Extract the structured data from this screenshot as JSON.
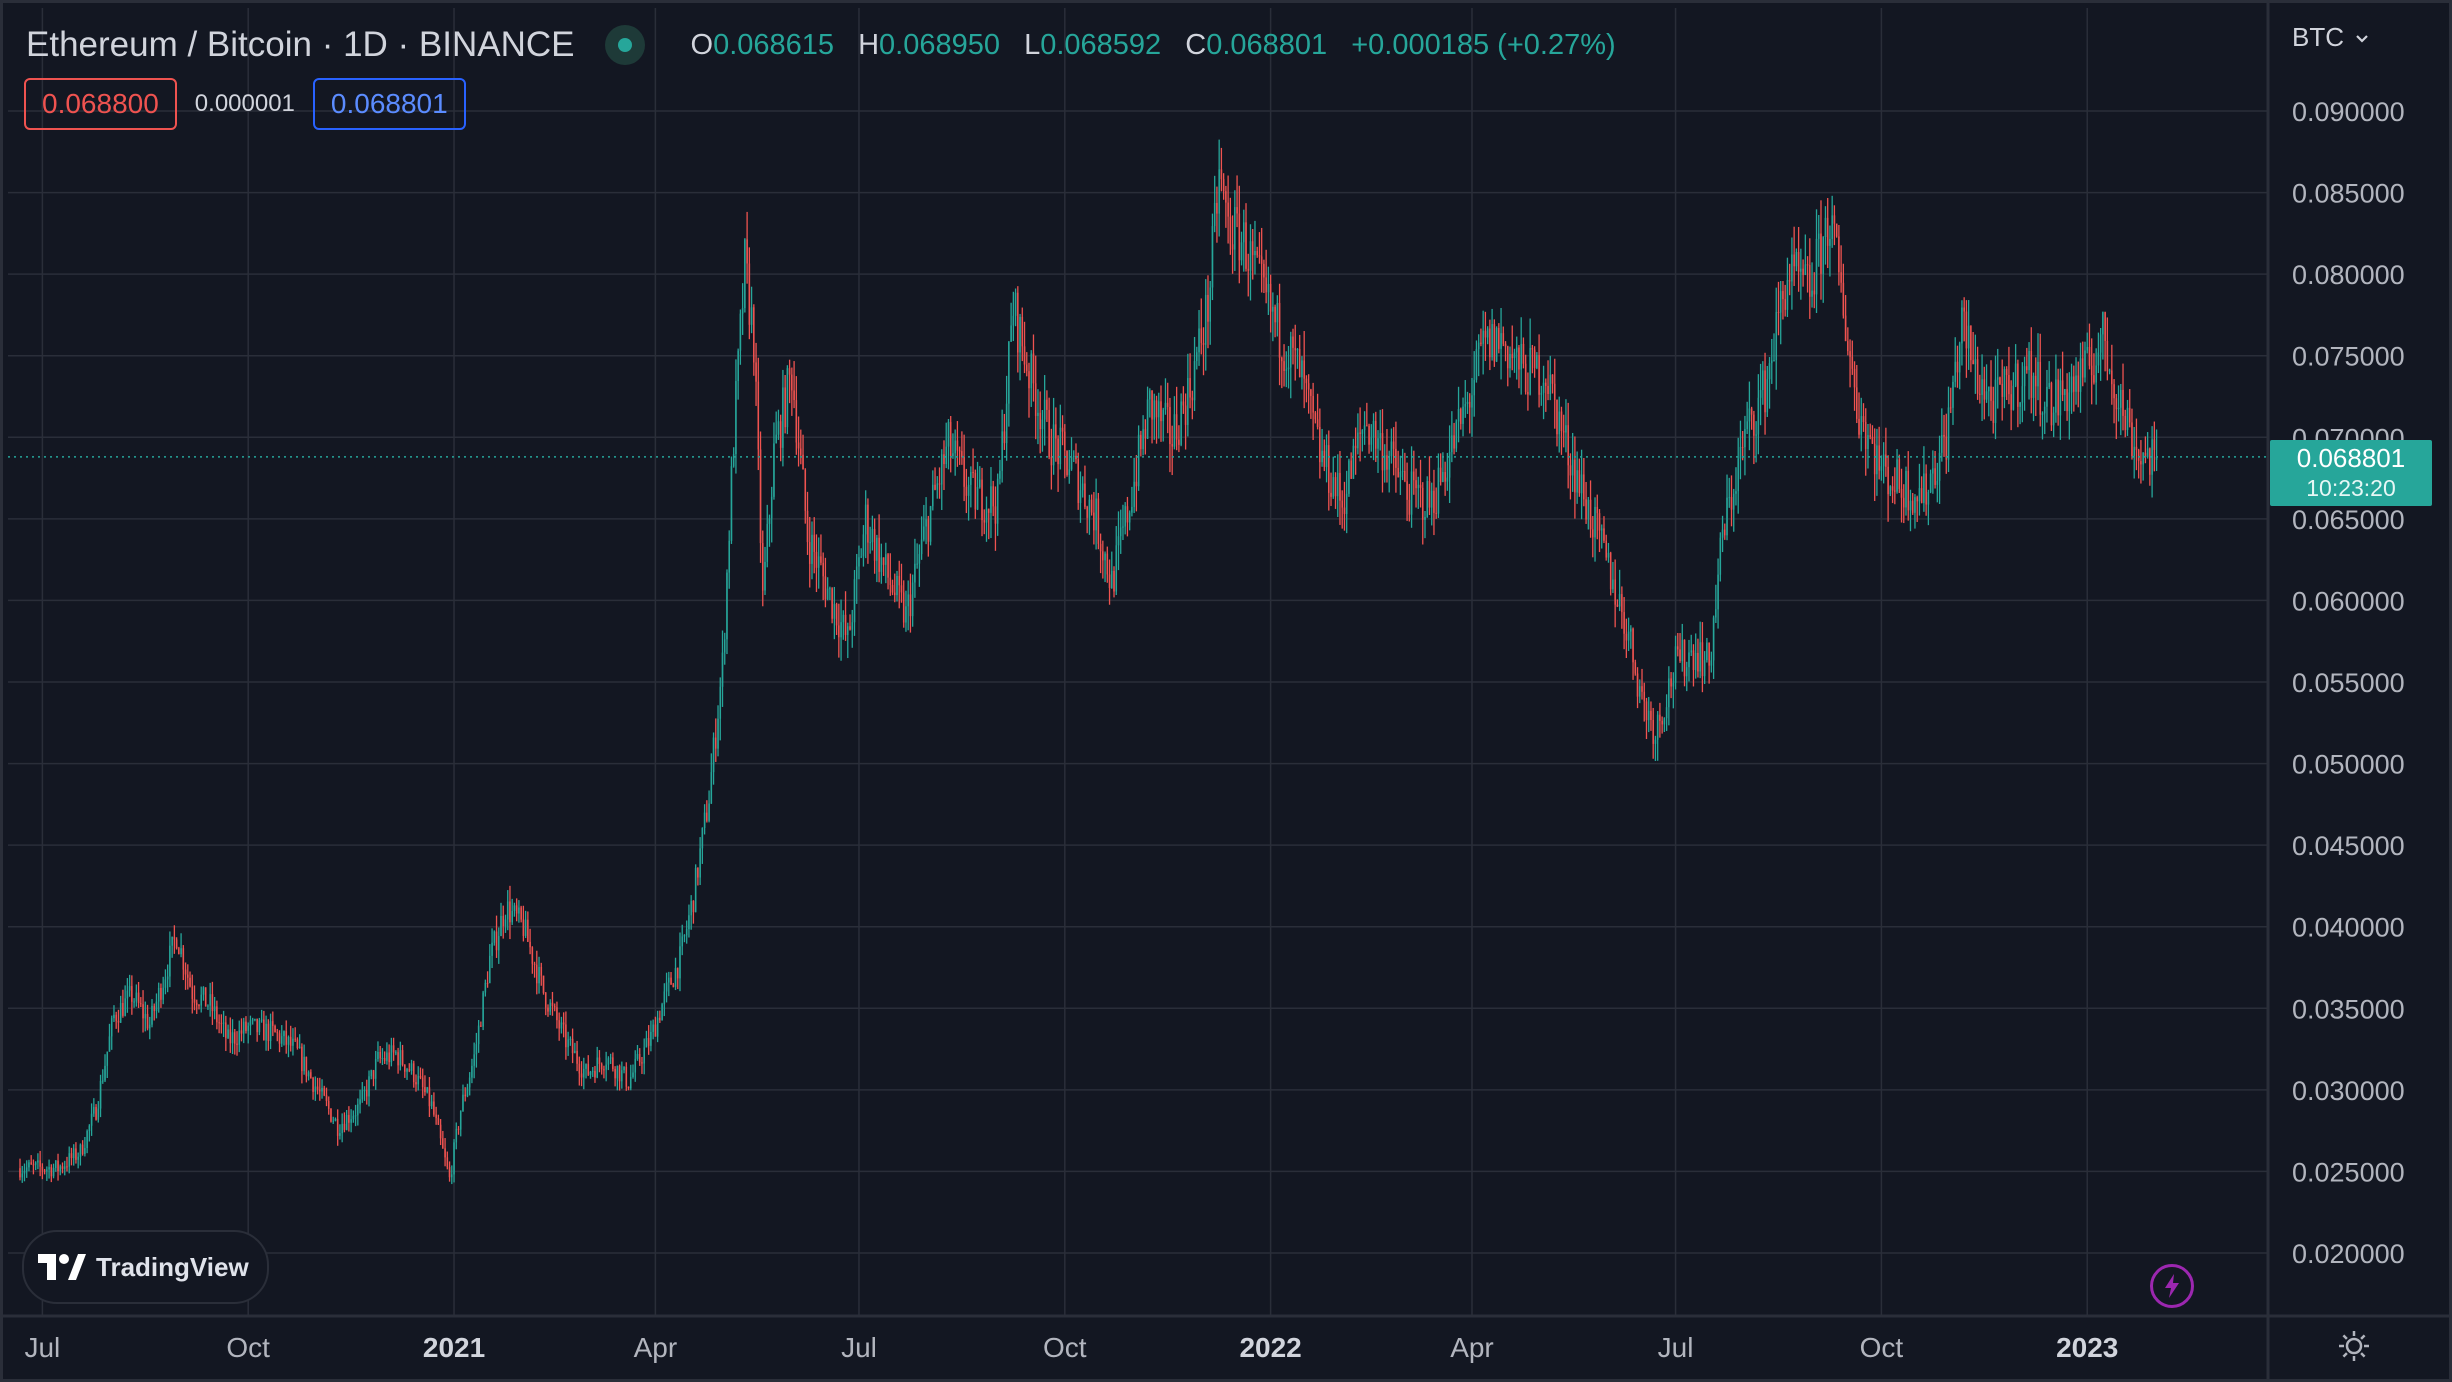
{
  "header": {
    "title": "Ethereum / Bitcoin · 1D · BINANCE",
    "o_label": "O",
    "o_value": "0.068615",
    "h_label": "H",
    "h_value": "0.068950",
    "l_label": "L",
    "l_value": "0.068592",
    "c_label": "C",
    "c_value": "0.068801",
    "change": "+0.000185 (+0.27%)"
  },
  "trade": {
    "sell_price": "0.068800",
    "spread": "0.000001",
    "buy_price": "0.068801"
  },
  "currency_label": "BTC",
  "price_label": {
    "price": "0.068801",
    "countdown": "10:23:20"
  },
  "branding": {
    "name": "TradingView"
  },
  "colors": {
    "up": "#26a69a",
    "down": "#ef5350",
    "background": "#131722",
    "grid": "#2a2e39",
    "axis_text": "#b2b5be"
  },
  "icons": {
    "status": "green-dot-icon",
    "replay": "lightning-icon",
    "settings": "gear-icon",
    "dropdown": "chevron-down-icon"
  },
  "chart_data": {
    "type": "candlestick",
    "title": "Ethereum / Bitcoin · 1D · BINANCE",
    "ylim": [
      0.016,
      0.093
    ],
    "y_ticks": [
      0.02,
      0.025,
      0.03,
      0.035,
      0.04,
      0.045,
      0.05,
      0.055,
      0.06,
      0.065,
      0.07,
      0.075,
      0.08,
      0.085,
      0.09
    ],
    "y_tick_labels": [
      "0.020000",
      "0.025000",
      "0.030000",
      "0.035000",
      "0.040000",
      "0.045000",
      "0.050000",
      "0.055000",
      "0.060000",
      "0.065000",
      "0.070000",
      "0.075000",
      "0.080000",
      "0.085000",
      "0.090000"
    ],
    "x_range": [
      "2020-06-21",
      "2023-02-07"
    ],
    "x_ticks": [
      {
        "date": "2020-07-01",
        "label": "Jul",
        "bold": false
      },
      {
        "date": "2020-10-01",
        "label": "Oct",
        "bold": false
      },
      {
        "date": "2021-01-01",
        "label": "2021",
        "bold": true
      },
      {
        "date": "2021-04-01",
        "label": "Apr",
        "bold": false
      },
      {
        "date": "2021-07-01",
        "label": "Jul",
        "bold": false
      },
      {
        "date": "2021-10-01",
        "label": "Oct",
        "bold": false
      },
      {
        "date": "2022-01-01",
        "label": "2022",
        "bold": true
      },
      {
        "date": "2022-04-01",
        "label": "Apr",
        "bold": false
      },
      {
        "date": "2022-07-01",
        "label": "Jul",
        "bold": false
      },
      {
        "date": "2022-10-01",
        "label": "Oct",
        "bold": false
      },
      {
        "date": "2023-01-01",
        "label": "2023",
        "bold": true
      }
    ],
    "last_price": 0.068801,
    "price_path": [
      [
        "2020-06-21",
        0.0252
      ],
      [
        "2020-07-08",
        0.0252
      ],
      [
        "2020-07-18",
        0.0262
      ],
      [
        "2020-07-25",
        0.0288
      ],
      [
        "2020-08-02",
        0.0345
      ],
      [
        "2020-08-10",
        0.0358
      ],
      [
        "2020-08-18",
        0.034
      ],
      [
        "2020-08-30",
        0.0395
      ],
      [
        "2020-09-06",
        0.036
      ],
      [
        "2020-09-14",
        0.0352
      ],
      [
        "2020-09-22",
        0.033
      ],
      [
        "2020-10-01",
        0.0338
      ],
      [
        "2020-10-12",
        0.0335
      ],
      [
        "2020-10-22",
        0.0325
      ],
      [
        "2020-11-01",
        0.03
      ],
      [
        "2020-11-10",
        0.0278
      ],
      [
        "2020-11-20",
        0.029
      ],
      [
        "2020-11-28",
        0.0318
      ],
      [
        "2020-12-06",
        0.0322
      ],
      [
        "2020-12-14",
        0.031
      ],
      [
        "2020-12-22",
        0.029
      ],
      [
        "2020-12-30",
        0.0245
      ],
      [
        "2021-01-04",
        0.0288
      ],
      [
        "2021-01-10",
        0.032
      ],
      [
        "2021-01-17",
        0.038
      ],
      [
        "2021-01-24",
        0.0412
      ],
      [
        "2021-02-01",
        0.04
      ],
      [
        "2021-02-10",
        0.036
      ],
      [
        "2021-02-20",
        0.033
      ],
      [
        "2021-03-01",
        0.031
      ],
      [
        "2021-03-10",
        0.032
      ],
      [
        "2021-03-20",
        0.0305
      ],
      [
        "2021-03-30",
        0.0332
      ],
      [
        "2021-04-06",
        0.036
      ],
      [
        "2021-04-12",
        0.038
      ],
      [
        "2021-04-18",
        0.0418
      ],
      [
        "2021-04-25",
        0.048
      ],
      [
        "2021-05-01",
        0.056
      ],
      [
        "2021-05-06",
        0.07
      ],
      [
        "2021-05-11",
        0.0805
      ],
      [
        "2021-05-15",
        0.076
      ],
      [
        "2021-05-19",
        0.06
      ],
      [
        "2021-05-24",
        0.069
      ],
      [
        "2021-06-01",
        0.074
      ],
      [
        "2021-06-08",
        0.064
      ],
      [
        "2021-06-16",
        0.061
      ],
      [
        "2021-06-26",
        0.0575
      ],
      [
        "2021-07-04",
        0.065
      ],
      [
        "2021-07-12",
        0.062
      ],
      [
        "2021-07-22",
        0.059
      ],
      [
        "2021-08-01",
        0.065
      ],
      [
        "2021-08-10",
        0.0695
      ],
      [
        "2021-08-20",
        0.0665
      ],
      [
        "2021-09-01",
        0.066
      ],
      [
        "2021-09-08",
        0.078
      ],
      [
        "2021-09-15",
        0.074
      ],
      [
        "2021-09-24",
        0.07
      ],
      [
        "2021-10-05",
        0.068
      ],
      [
        "2021-10-15",
        0.065
      ],
      [
        "2021-10-22",
        0.061
      ],
      [
        "2021-10-30",
        0.066
      ],
      [
        "2021-11-08",
        0.072
      ],
      [
        "2021-11-18",
        0.07
      ],
      [
        "2021-11-26",
        0.073
      ],
      [
        "2021-12-04",
        0.078
      ],
      [
        "2021-12-09",
        0.086
      ],
      [
        "2021-12-13",
        0.083
      ],
      [
        "2021-12-20",
        0.082
      ],
      [
        "2021-12-28",
        0.079
      ],
      [
        "2022-01-06",
        0.076
      ],
      [
        "2022-01-14",
        0.074
      ],
      [
        "2022-01-23",
        0.069
      ],
      [
        "2022-02-02",
        0.066
      ],
      [
        "2022-02-12",
        0.071
      ],
      [
        "2022-02-22",
        0.069
      ],
      [
        "2022-03-04",
        0.0665
      ],
      [
        "2022-03-14",
        0.066
      ],
      [
        "2022-03-22",
        0.069
      ],
      [
        "2022-03-30",
        0.072
      ],
      [
        "2022-04-06",
        0.0755
      ],
      [
        "2022-04-14",
        0.076
      ],
      [
        "2022-04-24",
        0.074
      ],
      [
        "2022-05-04",
        0.074
      ],
      [
        "2022-05-12",
        0.07
      ],
      [
        "2022-05-22",
        0.066
      ],
      [
        "2022-06-01",
        0.062
      ],
      [
        "2022-06-10",
        0.058
      ],
      [
        "2022-06-16",
        0.054
      ],
      [
        "2022-06-22",
        0.052
      ],
      [
        "2022-07-01",
        0.056
      ],
      [
        "2022-07-10",
        0.057
      ],
      [
        "2022-07-16",
        0.056
      ],
      [
        "2022-07-22",
        0.064
      ],
      [
        "2022-08-01",
        0.07
      ],
      [
        "2022-08-10",
        0.073
      ],
      [
        "2022-08-20",
        0.08
      ],
      [
        "2022-08-30",
        0.079
      ],
      [
        "2022-09-08",
        0.0835
      ],
      [
        "2022-09-14",
        0.078
      ],
      [
        "2022-09-20",
        0.072
      ],
      [
        "2022-10-01",
        0.068
      ],
      [
        "2022-10-10",
        0.067
      ],
      [
        "2022-10-20",
        0.0665
      ],
      [
        "2022-10-30",
        0.07
      ],
      [
        "2022-11-06",
        0.077
      ],
      [
        "2022-11-12",
        0.074
      ],
      [
        "2022-11-20",
        0.072
      ],
      [
        "2022-11-28",
        0.073
      ],
      [
        "2022-12-06",
        0.074
      ],
      [
        "2022-12-16",
        0.072
      ],
      [
        "2022-12-24",
        0.073
      ],
      [
        "2023-01-01",
        0.074
      ],
      [
        "2023-01-08",
        0.076
      ],
      [
        "2023-01-16",
        0.072
      ],
      [
        "2023-01-24",
        0.069
      ],
      [
        "2023-01-31",
        0.0688
      ]
    ],
    "candle_count": 956
  }
}
